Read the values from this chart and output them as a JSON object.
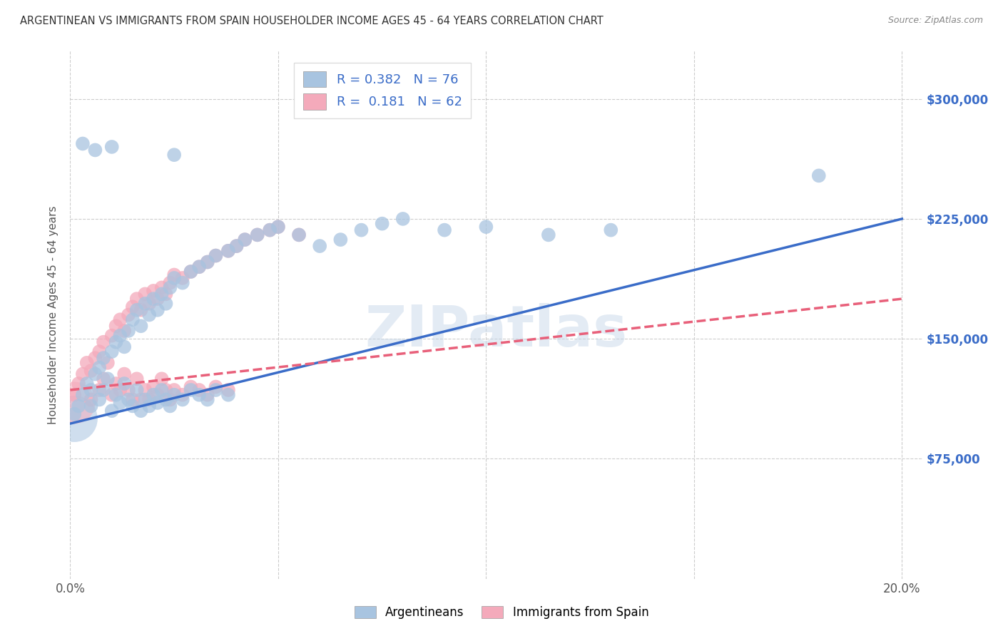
{
  "title": "ARGENTINEAN VS IMMIGRANTS FROM SPAIN HOUSEHOLDER INCOME AGES 45 - 64 YEARS CORRELATION CHART",
  "source": "Source: ZipAtlas.com",
  "ylabel": "Householder Income Ages 45 - 64 years",
  "xlim": [
    0.0,
    0.205
  ],
  "ylim": [
    0,
    330000
  ],
  "ytick_labels_right": [
    "$75,000",
    "$150,000",
    "$225,000",
    "$300,000"
  ],
  "ytick_values_right": [
    75000,
    150000,
    225000,
    300000
  ],
  "ytick_grid": [
    75000,
    150000,
    225000,
    300000
  ],
  "legend_blue_r": "0.382",
  "legend_blue_n": "76",
  "legend_pink_r": "0.181",
  "legend_pink_n": "62",
  "blue_color": "#A8C4E0",
  "pink_color": "#F4AABB",
  "blue_line_color": "#3A6CC8",
  "pink_line_color": "#E8607A",
  "watermark": "ZIPatlas",
  "blue_line_x0": 0.0,
  "blue_line_y0": 97000,
  "blue_line_x1": 0.2,
  "blue_line_y1": 225000,
  "pink_line_x0": 0.0,
  "pink_line_y0": 118000,
  "pink_line_x1": 0.2,
  "pink_line_y1": 175000,
  "dot_size": 200,
  "big_blue_size": 2200,
  "big_pink_size": 1800,
  "blue_scatter": [
    [
      0.001,
      103000
    ],
    [
      0.002,
      108000
    ],
    [
      0.003,
      115000
    ],
    [
      0.004,
      122000
    ],
    [
      0.005,
      118000
    ],
    [
      0.005,
      108000
    ],
    [
      0.006,
      128000
    ],
    [
      0.007,
      132000
    ],
    [
      0.007,
      112000
    ],
    [
      0.008,
      138000
    ],
    [
      0.008,
      118000
    ],
    [
      0.009,
      125000
    ],
    [
      0.01,
      142000
    ],
    [
      0.01,
      105000
    ],
    [
      0.011,
      148000
    ],
    [
      0.011,
      115000
    ],
    [
      0.012,
      152000
    ],
    [
      0.012,
      110000
    ],
    [
      0.013,
      145000
    ],
    [
      0.013,
      122000
    ],
    [
      0.014,
      155000
    ],
    [
      0.014,
      112000
    ],
    [
      0.015,
      162000
    ],
    [
      0.015,
      108000
    ],
    [
      0.016,
      168000
    ],
    [
      0.016,
      118000
    ],
    [
      0.017,
      158000
    ],
    [
      0.017,
      105000
    ],
    [
      0.018,
      172000
    ],
    [
      0.018,
      112000
    ],
    [
      0.019,
      165000
    ],
    [
      0.019,
      108000
    ],
    [
      0.02,
      175000
    ],
    [
      0.02,
      115000
    ],
    [
      0.021,
      168000
    ],
    [
      0.021,
      110000
    ],
    [
      0.022,
      178000
    ],
    [
      0.022,
      118000
    ],
    [
      0.023,
      172000
    ],
    [
      0.023,
      112000
    ],
    [
      0.024,
      182000
    ],
    [
      0.024,
      108000
    ],
    [
      0.025,
      188000
    ],
    [
      0.025,
      115000
    ],
    [
      0.027,
      185000
    ],
    [
      0.027,
      112000
    ],
    [
      0.029,
      192000
    ],
    [
      0.029,
      118000
    ],
    [
      0.031,
      195000
    ],
    [
      0.031,
      115000
    ],
    [
      0.033,
      198000
    ],
    [
      0.033,
      112000
    ],
    [
      0.035,
      202000
    ],
    [
      0.035,
      118000
    ],
    [
      0.038,
      205000
    ],
    [
      0.038,
      115000
    ],
    [
      0.04,
      208000
    ],
    [
      0.042,
      212000
    ],
    [
      0.045,
      215000
    ],
    [
      0.048,
      218000
    ],
    [
      0.05,
      220000
    ],
    [
      0.055,
      215000
    ],
    [
      0.06,
      208000
    ],
    [
      0.065,
      212000
    ],
    [
      0.07,
      218000
    ],
    [
      0.075,
      222000
    ],
    [
      0.08,
      225000
    ],
    [
      0.09,
      218000
    ],
    [
      0.1,
      220000
    ],
    [
      0.115,
      215000
    ],
    [
      0.13,
      218000
    ],
    [
      0.18,
      252000
    ],
    [
      0.003,
      272000
    ],
    [
      0.006,
      268000
    ],
    [
      0.01,
      270000
    ],
    [
      0.025,
      265000
    ]
  ],
  "pink_scatter": [
    [
      0.001,
      115000
    ],
    [
      0.002,
      122000
    ],
    [
      0.003,
      128000
    ],
    [
      0.004,
      135000
    ],
    [
      0.005,
      130000
    ],
    [
      0.005,
      112000
    ],
    [
      0.006,
      138000
    ],
    [
      0.007,
      142000
    ],
    [
      0.007,
      118000
    ],
    [
      0.008,
      148000
    ],
    [
      0.008,
      125000
    ],
    [
      0.009,
      135000
    ],
    [
      0.01,
      152000
    ],
    [
      0.01,
      115000
    ],
    [
      0.011,
      158000
    ],
    [
      0.011,
      122000
    ],
    [
      0.012,
      162000
    ],
    [
      0.012,
      118000
    ],
    [
      0.013,
      155000
    ],
    [
      0.013,
      128000
    ],
    [
      0.014,
      165000
    ],
    [
      0.014,
      118000
    ],
    [
      0.015,
      170000
    ],
    [
      0.015,
      112000
    ],
    [
      0.016,
      175000
    ],
    [
      0.016,
      125000
    ],
    [
      0.017,
      168000
    ],
    [
      0.017,
      112000
    ],
    [
      0.018,
      178000
    ],
    [
      0.018,
      118000
    ],
    [
      0.019,
      172000
    ],
    [
      0.019,
      112000
    ],
    [
      0.02,
      180000
    ],
    [
      0.02,
      120000
    ],
    [
      0.021,
      175000
    ],
    [
      0.021,
      115000
    ],
    [
      0.022,
      182000
    ],
    [
      0.022,
      125000
    ],
    [
      0.023,
      178000
    ],
    [
      0.023,
      118000
    ],
    [
      0.024,
      185000
    ],
    [
      0.024,
      112000
    ],
    [
      0.025,
      190000
    ],
    [
      0.025,
      118000
    ],
    [
      0.027,
      188000
    ],
    [
      0.027,
      115000
    ],
    [
      0.029,
      192000
    ],
    [
      0.029,
      120000
    ],
    [
      0.031,
      195000
    ],
    [
      0.031,
      118000
    ],
    [
      0.033,
      198000
    ],
    [
      0.033,
      115000
    ],
    [
      0.035,
      202000
    ],
    [
      0.035,
      120000
    ],
    [
      0.038,
      205000
    ],
    [
      0.038,
      118000
    ],
    [
      0.04,
      208000
    ],
    [
      0.042,
      212000
    ],
    [
      0.045,
      215000
    ],
    [
      0.048,
      218000
    ],
    [
      0.05,
      220000
    ],
    [
      0.055,
      215000
    ]
  ],
  "blue_big_dot": [
    0.001,
    100000
  ],
  "pink_big_dot": [
    0.001,
    110000
  ]
}
